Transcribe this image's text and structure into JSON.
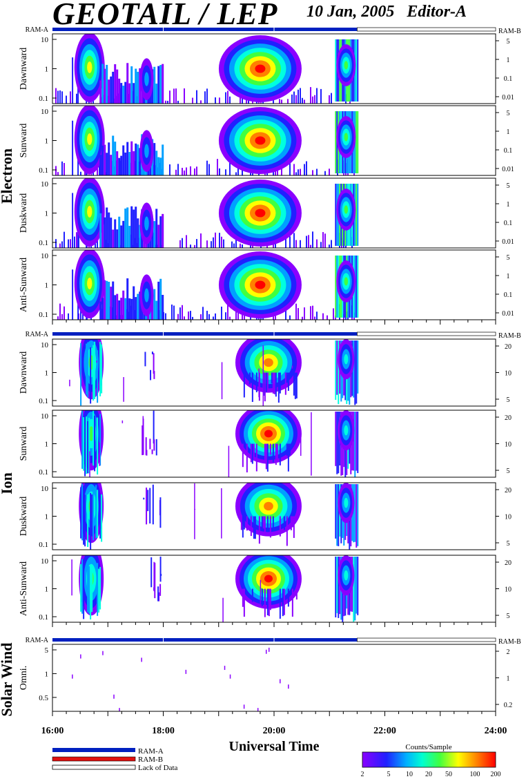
{
  "header": {
    "title": "GEOTAIL / LEP",
    "date_editor": "10 Jan, 2005   Editor-A"
  },
  "colors": {
    "ram_a": "#0020c0",
    "ram_b": "#e01010",
    "spectrum": [
      "#8a00ff",
      "#2020ff",
      "#00a0ff",
      "#00ffe0",
      "#40ff40",
      "#ffff00",
      "#ff8000",
      "#ff0000"
    ]
  },
  "chart_data": [
    {
      "type": "heatmap",
      "group": "Electron",
      "ylabel": "Dawnward",
      "y_ticks": [
        "10",
        "1",
        "0.1"
      ],
      "right_ticks": [
        "5",
        "1",
        "0.1",
        "0.01"
      ],
      "top_ram_label_left": "RAM-A",
      "top_ram_label_right": "RAM-B"
    },
    {
      "type": "heatmap",
      "group": "Electron",
      "ylabel": "Sunward",
      "y_ticks": [
        "10",
        "1",
        "0.1"
      ],
      "right_ticks": [
        "5",
        "1",
        "0.1",
        "0.01"
      ]
    },
    {
      "type": "heatmap",
      "group": "Electron",
      "ylabel": "Duskward",
      "y_ticks": [
        "10",
        "1",
        "0.1"
      ],
      "right_ticks": [
        "5",
        "1",
        "0.1",
        "0.01"
      ]
    },
    {
      "type": "heatmap",
      "group": "Electron",
      "ylabel": "Anti-Sunward",
      "y_ticks": [
        "10",
        "1",
        "0.1"
      ],
      "right_ticks": [
        "5",
        "1",
        "0.1",
        "0.01"
      ]
    },
    {
      "type": "heatmap",
      "group": "Ion",
      "ylabel": "Dawnward",
      "y_ticks": [
        "10",
        "1",
        "0.1"
      ],
      "right_ticks": [
        "20",
        "10",
        "5"
      ],
      "top_ram_label_left": "RAM-A",
      "top_ram_label_right": "RAM-B"
    },
    {
      "type": "heatmap",
      "group": "Ion",
      "ylabel": "Sunward",
      "y_ticks": [
        "10",
        "1",
        "0.1"
      ],
      "right_ticks": [
        "20",
        "10",
        "5"
      ]
    },
    {
      "type": "heatmap",
      "group": "Ion",
      "ylabel": "Duskward",
      "y_ticks": [
        "10",
        "1",
        "0.1"
      ],
      "right_ticks": [
        "20",
        "10",
        "5"
      ]
    },
    {
      "type": "heatmap",
      "group": "Ion",
      "ylabel": "Anti-Sunward",
      "y_ticks": [
        "10",
        "1",
        "0.1"
      ],
      "right_ticks": [
        "20",
        "10",
        "5"
      ]
    },
    {
      "type": "heatmap",
      "group": "Solar Wind",
      "ylabel": "Omni.",
      "y_ticks": [
        "5",
        "1",
        "0.5"
      ],
      "right_ticks": [
        "2",
        "1",
        "0.2"
      ],
      "top_ram_label_left": "RAM-A",
      "top_ram_label_right": "RAM-B"
    }
  ],
  "groups": {
    "electron": "Electron",
    "ion": "Ion",
    "solar_wind": "Solar Wind"
  },
  "x_axis": {
    "ticks": [
      "16:00",
      "18:00",
      "20:00",
      "22:00",
      "24:00"
    ],
    "label": "Universal Time",
    "range_hours": [
      16,
      24
    ],
    "data_end_hour": 21.5
  },
  "legend": {
    "ram_a": "RAM-A",
    "ram_b": "RAM-B",
    "lack": "Lack of Data"
  },
  "colorbar": {
    "title": "Counts/Sample",
    "ticks": [
      "2",
      "5",
      "10",
      "20",
      "50",
      "100",
      "200"
    ]
  }
}
